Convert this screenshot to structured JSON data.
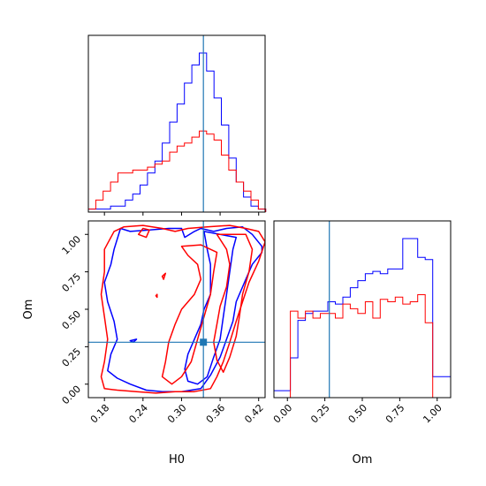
{
  "chart_data": {
    "type": "corner",
    "colors": {
      "series_a": "#0000ff",
      "series_b": "#ff0000",
      "truth": "#1f77b4"
    },
    "parameters": [
      {
        "key": "H0",
        "label": "H0",
        "range": [
          0.155,
          0.43
        ],
        "ticks": [
          "0.18",
          "0.24",
          "0.30",
          "0.36",
          "0.42"
        ],
        "tick_values": [
          0.18,
          0.24,
          0.3,
          0.36,
          0.42
        ],
        "truth": 0.334
      },
      {
        "key": "Om",
        "label": "Om",
        "range": [
          -0.09,
          1.09
        ],
        "ticks": [
          "0.00",
          "0.25",
          "0.50",
          "0.75",
          "1.00"
        ],
        "tick_values": [
          0.0,
          0.25,
          0.5,
          0.75,
          1.0
        ],
        "truth": 0.28
      }
    ],
    "hist_H0": {
      "edges": [
        0.155,
        0.1665,
        0.178,
        0.1895,
        0.201,
        0.2125,
        0.224,
        0.2355,
        0.247,
        0.2585,
        0.27,
        0.2815,
        0.293,
        0.3045,
        0.316,
        0.3275,
        0.339,
        0.3505,
        0.362,
        0.3735,
        0.385,
        0.3965,
        0.408,
        0.4195,
        0.431
      ],
      "series": [
        {
          "color": "blue",
          "counts": [
            1,
            1,
            1,
            2,
            2,
            4,
            6,
            9,
            13,
            17,
            23,
            30,
            36,
            43,
            49,
            53,
            47,
            38,
            29,
            18,
            10,
            5,
            2,
            1
          ]
        },
        {
          "color": "red",
          "counts": [
            1,
            4,
            7,
            10,
            13,
            13,
            14,
            14,
            15,
            16,
            17,
            20,
            22,
            23,
            25,
            27,
            26,
            24,
            19,
            14,
            10,
            7,
            4,
            1
          ]
        }
      ]
    },
    "hist_Om": {
      "edges": [
        -0.09,
        -0.03,
        0.02,
        0.07,
        0.12,
        0.17,
        0.22,
        0.27,
        0.32,
        0.37,
        0.42,
        0.47,
        0.52,
        0.57,
        0.62,
        0.67,
        0.72,
        0.77,
        0.82,
        0.87,
        0.92,
        0.97,
        1.03,
        1.09
      ],
      "series": [
        {
          "color": "blue",
          "counts": [
            3,
            3,
            17,
            33,
            36,
            37,
            37,
            41,
            40,
            43,
            47,
            50,
            53,
            54,
            53,
            55,
            55,
            68,
            68,
            60,
            59,
            9,
            9
          ]
        },
        {
          "color": "red",
          "counts": [
            0,
            0,
            37,
            34,
            37,
            34,
            36,
            36,
            34,
            40,
            38,
            36,
            41,
            34,
            42,
            41,
            43,
            40,
            41,
            44,
            32,
            0,
            0
          ]
        }
      ]
    },
    "contours": [
      {
        "color": "blue",
        "points": [
          [
            0.205,
            1.04
          ],
          [
            0.22,
            1.02
          ],
          [
            0.25,
            1.03
          ],
          [
            0.28,
            1.04
          ],
          [
            0.3,
            1.04
          ],
          [
            0.305,
            0.98
          ],
          [
            0.32,
            1.02
          ],
          [
            0.33,
            1.04
          ],
          [
            0.35,
            1.02
          ],
          [
            0.37,
            1.04
          ],
          [
            0.395,
            1.05
          ],
          [
            0.41,
            1.0
          ],
          [
            0.425,
            0.92
          ],
          [
            0.425,
            0.88
          ],
          [
            0.41,
            0.8
          ],
          [
            0.4,
            0.7
          ],
          [
            0.385,
            0.55
          ],
          [
            0.38,
            0.42
          ],
          [
            0.37,
            0.3
          ],
          [
            0.36,
            0.18
          ],
          [
            0.345,
            0.06
          ],
          [
            0.33,
            -0.03
          ],
          [
            0.3,
            -0.05
          ],
          [
            0.27,
            -0.05
          ],
          [
            0.245,
            -0.04
          ],
          [
            0.22,
            0.0
          ],
          [
            0.2,
            0.04
          ],
          [
            0.185,
            0.09
          ],
          [
            0.19,
            0.2
          ],
          [
            0.2,
            0.3
          ],
          [
            0.195,
            0.42
          ],
          [
            0.185,
            0.55
          ],
          [
            0.18,
            0.68
          ],
          [
            0.19,
            0.8
          ],
          [
            0.195,
            0.9
          ],
          [
            0.205,
            1.04
          ]
        ]
      },
      {
        "color": "blue",
        "points": [
          [
            0.335,
            1.02
          ],
          [
            0.34,
            0.9
          ],
          [
            0.345,
            0.8
          ],
          [
            0.345,
            0.7
          ],
          [
            0.345,
            0.6
          ],
          [
            0.335,
            0.5
          ],
          [
            0.33,
            0.4
          ],
          [
            0.32,
            0.3
          ],
          [
            0.31,
            0.2
          ],
          [
            0.305,
            0.1
          ],
          [
            0.31,
            0.02
          ],
          [
            0.325,
            0.0
          ],
          [
            0.34,
            0.05
          ],
          [
            0.35,
            0.18
          ],
          [
            0.36,
            0.3
          ],
          [
            0.365,
            0.45
          ],
          [
            0.37,
            0.6
          ],
          [
            0.375,
            0.75
          ],
          [
            0.38,
            0.9
          ],
          [
            0.385,
            0.98
          ],
          [
            0.36,
            1.0
          ],
          [
            0.335,
            1.02
          ]
        ]
      },
      {
        "color": "blue",
        "points": [
          [
            0.22,
            0.29
          ],
          [
            0.23,
            0.3
          ],
          [
            0.225,
            0.28
          ],
          [
            0.22,
            0.29
          ]
        ]
      },
      {
        "color": "red",
        "points": [
          [
            0.21,
            1.05
          ],
          [
            0.24,
            1.06
          ],
          [
            0.27,
            1.04
          ],
          [
            0.29,
            1.02
          ],
          [
            0.31,
            1.04
          ],
          [
            0.34,
            1.05
          ],
          [
            0.375,
            1.06
          ],
          [
            0.4,
            1.04
          ],
          [
            0.42,
            1.02
          ],
          [
            0.43,
            0.95
          ],
          [
            0.42,
            0.82
          ],
          [
            0.405,
            0.68
          ],
          [
            0.395,
            0.55
          ],
          [
            0.385,
            0.42
          ],
          [
            0.375,
            0.28
          ],
          [
            0.365,
            0.15
          ],
          [
            0.355,
            0.05
          ],
          [
            0.345,
            -0.03
          ],
          [
            0.32,
            -0.05
          ],
          [
            0.29,
            -0.05
          ],
          [
            0.26,
            -0.06
          ],
          [
            0.23,
            -0.05
          ],
          [
            0.2,
            -0.04
          ],
          [
            0.18,
            -0.03
          ],
          [
            0.175,
            0.05
          ],
          [
            0.18,
            0.15
          ],
          [
            0.185,
            0.3
          ],
          [
            0.18,
            0.45
          ],
          [
            0.175,
            0.6
          ],
          [
            0.18,
            0.75
          ],
          [
            0.18,
            0.9
          ],
          [
            0.195,
            1.02
          ],
          [
            0.21,
            1.05
          ]
        ]
      },
      {
        "color": "red",
        "points": [
          [
            0.3,
            0.92
          ],
          [
            0.31,
            0.86
          ],
          [
            0.325,
            0.8
          ],
          [
            0.33,
            0.7
          ],
          [
            0.32,
            0.6
          ],
          [
            0.3,
            0.5
          ],
          [
            0.29,
            0.4
          ],
          [
            0.28,
            0.28
          ],
          [
            0.275,
            0.15
          ],
          [
            0.27,
            0.05
          ],
          [
            0.285,
            0.0
          ],
          [
            0.3,
            0.05
          ],
          [
            0.315,
            0.15
          ],
          [
            0.325,
            0.3
          ],
          [
            0.335,
            0.45
          ],
          [
            0.345,
            0.6
          ],
          [
            0.35,
            0.75
          ],
          [
            0.355,
            0.88
          ],
          [
            0.33,
            0.93
          ],
          [
            0.3,
            0.92
          ]
        ]
      },
      {
        "color": "red",
        "points": [
          [
            0.355,
            1.0
          ],
          [
            0.37,
            0.9
          ],
          [
            0.375,
            0.8
          ],
          [
            0.37,
            0.65
          ],
          [
            0.36,
            0.52
          ],
          [
            0.355,
            0.4
          ],
          [
            0.35,
            0.28
          ],
          [
            0.355,
            0.16
          ],
          [
            0.365,
            0.08
          ],
          [
            0.375,
            0.18
          ],
          [
            0.385,
            0.32
          ],
          [
            0.39,
            0.45
          ],
          [
            0.395,
            0.6
          ],
          [
            0.405,
            0.75
          ],
          [
            0.41,
            0.9
          ],
          [
            0.4,
            1.0
          ],
          [
            0.355,
            1.0
          ]
        ]
      },
      {
        "color": "red",
        "points": [
          [
            0.233,
            1.0
          ],
          [
            0.245,
            0.98
          ],
          [
            0.25,
            1.03
          ],
          [
            0.24,
            1.04
          ],
          [
            0.233,
            1.0
          ]
        ]
      },
      {
        "color": "red",
        "points": [
          [
            0.27,
            0.72
          ],
          [
            0.275,
            0.74
          ],
          [
            0.272,
            0.7
          ],
          [
            0.27,
            0.72
          ]
        ]
      },
      {
        "color": "red",
        "points": [
          [
            0.26,
            0.59
          ],
          [
            0.262,
            0.58
          ],
          [
            0.262,
            0.6
          ],
          [
            0.26,
            0.59
          ]
        ]
      }
    ],
    "truth_marker": {
      "x": 0.334,
      "y": 0.28
    }
  }
}
